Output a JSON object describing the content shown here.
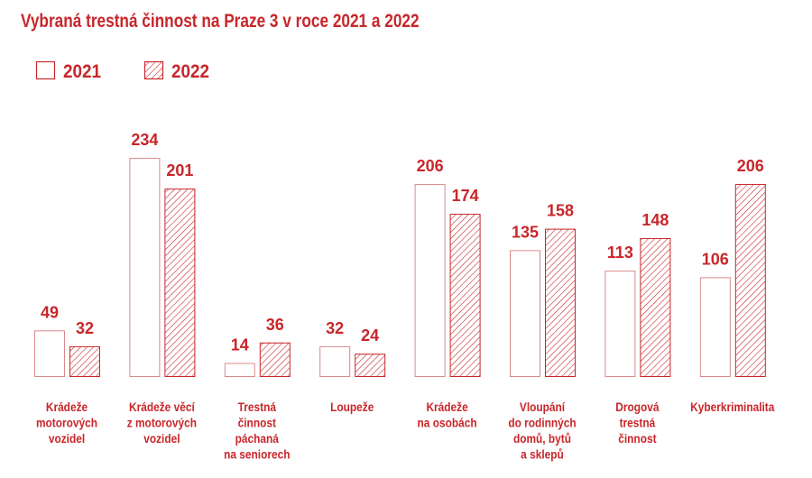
{
  "colors": {
    "accent": "#c8262a",
    "outline": "#d98a8c"
  },
  "chart_data": {
    "type": "bar",
    "title": "Vybraná trestná činnost na Praze 3 v roce 2021 a 2022",
    "legend_position": "top-left",
    "grid": false,
    "categories": [
      [
        "Krádeže",
        "motorových",
        "vozidel"
      ],
      [
        "Krádeže věcí",
        "z motorových",
        "vozidel"
      ],
      [
        "Trestná",
        "činnost",
        "páchaná",
        "na seniorech"
      ],
      [
        "Loupeže"
      ],
      [
        "Krádeže",
        "na osobách"
      ],
      [
        "Vloupání",
        "do rodinných",
        "domů, bytů",
        "a sklepů"
      ],
      [
        "Drogová",
        "trestná",
        "činnost"
      ],
      [
        "Kyberkriminalita"
      ]
    ],
    "series": [
      {
        "name": "2021",
        "style": "outline",
        "values": [
          49,
          234,
          14,
          32,
          206,
          135,
          113,
          106
        ]
      },
      {
        "name": "2022",
        "style": "hatched",
        "values": [
          32,
          201,
          36,
          24,
          174,
          158,
          148,
          206
        ]
      }
    ],
    "ylim": [
      0,
      234
    ]
  }
}
